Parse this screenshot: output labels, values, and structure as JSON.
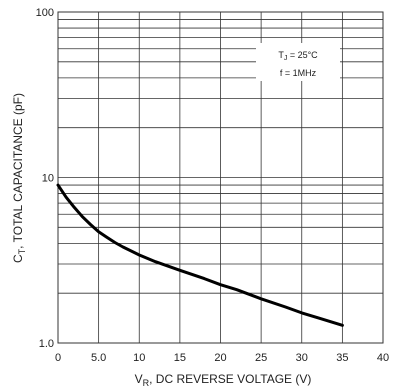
{
  "chart_data": {
    "type": "line",
    "xlabel": {
      "main": "V",
      "sub": "R",
      "rest": ", DC REVERSE VOLTAGE (V)"
    },
    "ylabel": {
      "main": "C",
      "sub": "T",
      "rest": ", TOTAL CAPACITANCE (pF)"
    },
    "xlim": [
      0,
      40
    ],
    "ylim": [
      1,
      100
    ],
    "yscale": "log",
    "grid": true,
    "x_ticks": [
      "0",
      "5.0",
      "10",
      "15",
      "20",
      "25",
      "30",
      "35",
      "40"
    ],
    "y_ticks": [
      "1.0",
      "10",
      "100"
    ],
    "annotations": {
      "line1": {
        "main": "T",
        "sub": "J",
        "rest": " = 25°C"
      },
      "line2": "f = 1MHz"
    },
    "series": [
      {
        "x": [
          0,
          1,
          2,
          3,
          4,
          5,
          6,
          7,
          8,
          10,
          12,
          15,
          18,
          20,
          22,
          25,
          28,
          30,
          32,
          35
        ],
        "y": [
          9.0,
          7.6,
          6.6,
          5.8,
          5.2,
          4.7,
          4.35,
          4.05,
          3.8,
          3.4,
          3.1,
          2.75,
          2.45,
          2.25,
          2.1,
          1.85,
          1.65,
          1.52,
          1.42,
          1.28
        ]
      }
    ]
  }
}
